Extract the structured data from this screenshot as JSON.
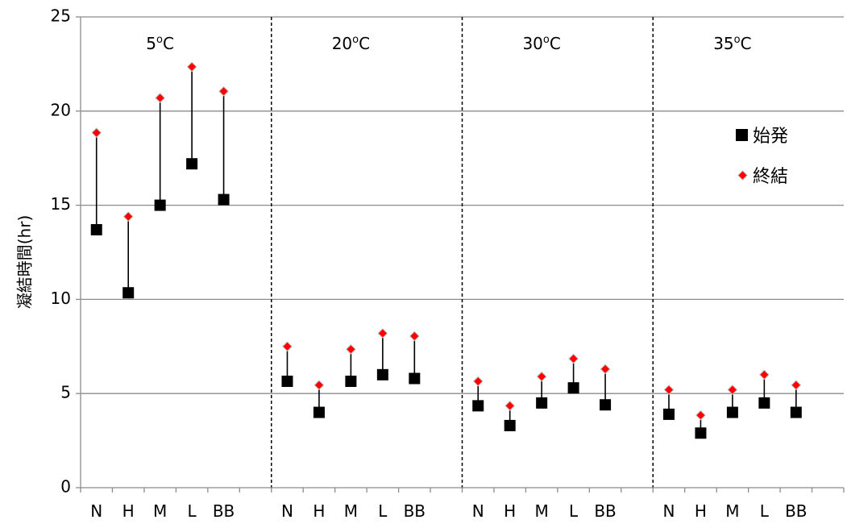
{
  "chart_data": {
    "type": "scatter",
    "ylabel": "凝結時間(hr)",
    "ylim": [
      0,
      25
    ],
    "yticks": [
      0,
      5,
      10,
      15,
      20,
      25
    ],
    "grid": true,
    "legend_placement": "right",
    "categories": [
      "N",
      "H",
      "M",
      "L",
      "BB"
    ],
    "panels": [
      {
        "label_main": "5",
        "label_sup": "o",
        "label_unit": "C",
        "initial": [
          13.7,
          10.35,
          15.0,
          17.2,
          15.3
        ],
        "final": [
          18.85,
          14.4,
          20.7,
          22.35,
          21.05
        ]
      },
      {
        "label_main": "20",
        "label_sup": "o",
        "label_unit": "C",
        "initial": [
          5.65,
          4.0,
          5.65,
          6.0,
          5.8
        ],
        "final": [
          7.5,
          5.45,
          7.35,
          8.2,
          8.05
        ]
      },
      {
        "label_main": "30",
        "label_sup": "o",
        "label_unit": "C",
        "initial": [
          4.35,
          3.3,
          4.5,
          5.3,
          4.4
        ],
        "final": [
          5.65,
          4.35,
          5.9,
          6.85,
          6.3
        ]
      },
      {
        "label_main": "35",
        "label_sup": "o",
        "label_unit": "C",
        "initial": [
          3.9,
          2.9,
          4.0,
          4.5,
          4.0
        ],
        "final": [
          5.2,
          3.85,
          5.2,
          6.0,
          5.45
        ]
      }
    ],
    "series": [
      {
        "name": "始発",
        "marker": "square",
        "color": "#000000"
      },
      {
        "name": "終結",
        "marker": "diamond",
        "color": "#ff0000",
        "edge": "#c0c0c0"
      }
    ]
  }
}
